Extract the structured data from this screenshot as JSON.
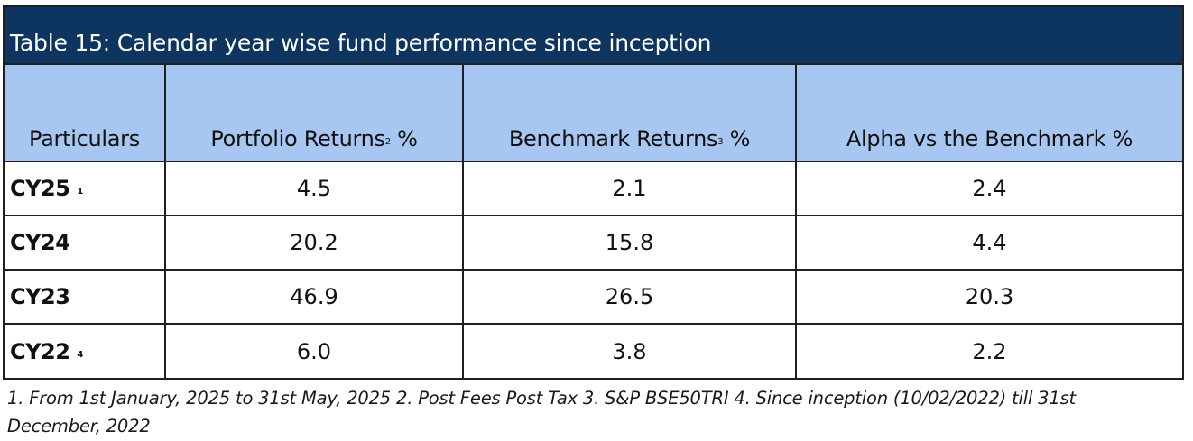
{
  "title": "Table 15: Calendar year wise fund performance since inception",
  "headers": [
    {
      "label": "Particulars",
      "sup": ""
    },
    {
      "label": "Portfolio Returns",
      "sup": "2",
      "suffix": " %"
    },
    {
      "label": "Benchmark Returns",
      "sup": "3",
      "suffix": " %"
    },
    {
      "label": "Alpha vs the Benchmark %",
      "sup": ""
    }
  ],
  "rows": [
    {
      "label": "CY25",
      "sup": "1",
      "portfolio": "4.5",
      "benchmark": "2.1",
      "alpha": "2.4"
    },
    {
      "label": "CY24",
      "sup": "",
      "portfolio": "20.2",
      "benchmark": "15.8",
      "alpha": "4.4"
    },
    {
      "label": "CY23",
      "sup": "",
      "portfolio": "46.9",
      "benchmark": "26.5",
      "alpha": "20.3"
    },
    {
      "label": "CY22",
      "sup": "4",
      "portfolio": "6.0",
      "benchmark": "3.8",
      "alpha": "2.2"
    }
  ],
  "footnote": "1. From 1st January, 2025 to 31st May, 2025    2.  Post Fees Post Tax  3. S&P BSE50TRI 4. Since inception (10/02/2022) till 31st December, 2022",
  "colors": {
    "title_bg": "#0d355f",
    "header_bg": "#a7c6f1",
    "border": "#1f1f1f"
  }
}
